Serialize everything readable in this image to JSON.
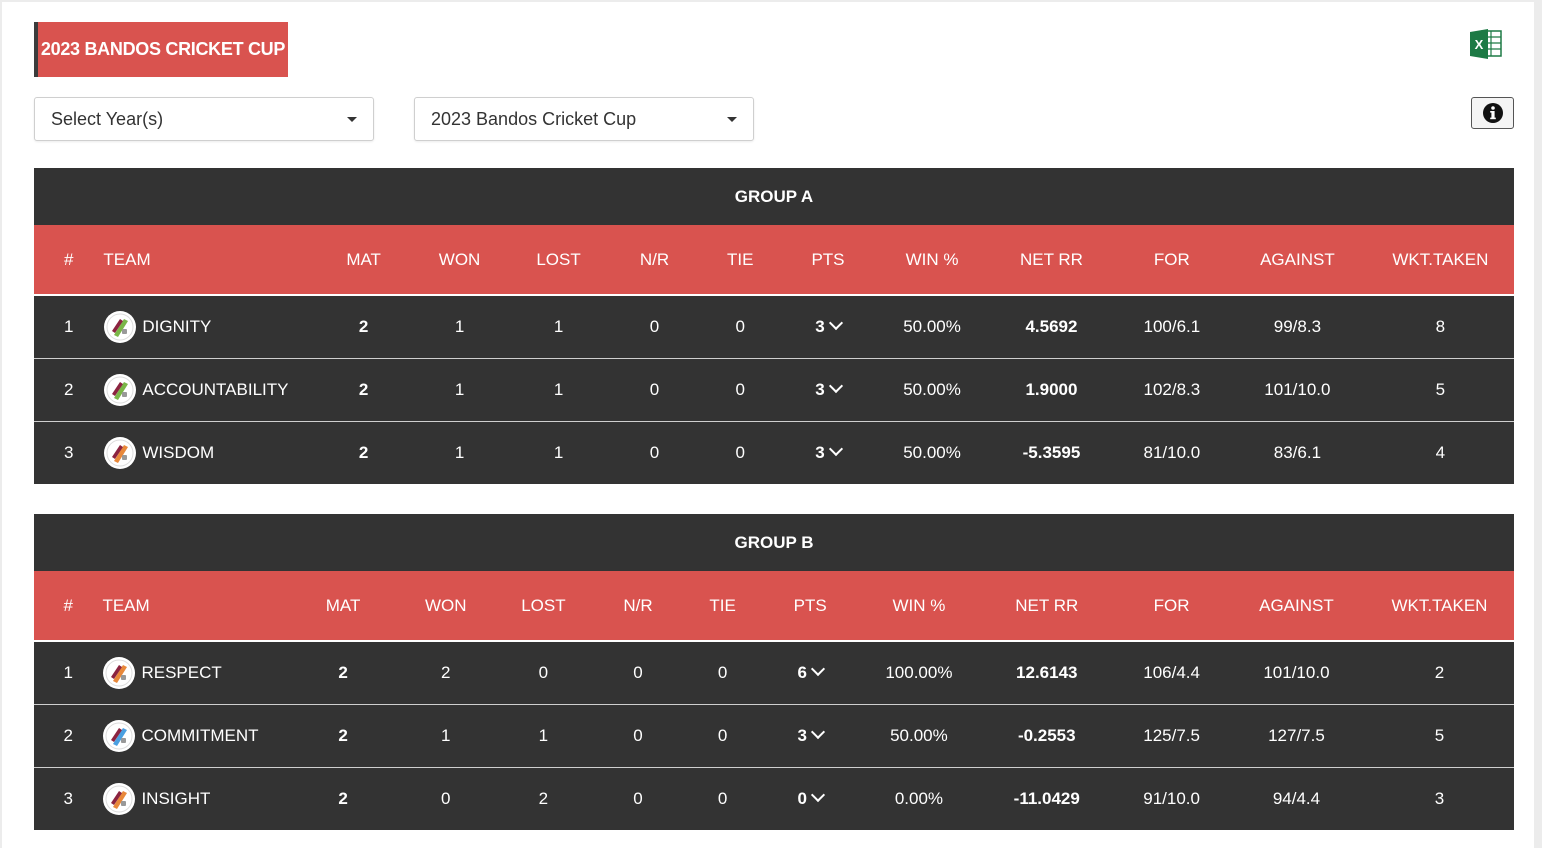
{
  "page": {
    "title": "2023 BANDOS CRICKET CUP",
    "export_icon": "excel-icon",
    "info_icon": "info-icon"
  },
  "filters": {
    "year": "Select Year(s)",
    "tournament": "2023 Bandos Cricket Cup"
  },
  "columns": [
    "#",
    "TEAM",
    "MAT",
    "WON",
    "LOST",
    "N/R",
    "TIE",
    "PTS",
    "WIN %",
    "NET RR",
    "FOR",
    "AGAINST",
    "WKT.TAKEN"
  ],
  "colors": {
    "accent": "#d9534f",
    "dark": "#333333",
    "logo_green": "#7ab648",
    "logo_orange": "#e8883a",
    "logo_blue": "#4a9fe0",
    "logo_maroon": "#8b2340"
  },
  "groups": [
    {
      "name": "GROUP A",
      "rows": [
        {
          "pos": "1",
          "team": "DIGNITY",
          "mat": "2",
          "won": "1",
          "lost": "1",
          "nr": "0",
          "tie": "0",
          "pts": "3",
          "win_pct": "50.00%",
          "nrr": "4.5692",
          "for": "100/6.1",
          "against": "99/8.3",
          "wkt": "8",
          "logo": "green"
        },
        {
          "pos": "2",
          "team": "ACCOUNTABILITY",
          "mat": "2",
          "won": "1",
          "lost": "1",
          "nr": "0",
          "tie": "0",
          "pts": "3",
          "win_pct": "50.00%",
          "nrr": "1.9000",
          "for": "102/8.3",
          "against": "101/10.0",
          "wkt": "5",
          "logo": "green"
        },
        {
          "pos": "3",
          "team": "WISDOM",
          "mat": "2",
          "won": "1",
          "lost": "1",
          "nr": "0",
          "tie": "0",
          "pts": "3",
          "win_pct": "50.00%",
          "nrr": "-5.3595",
          "for": "81/10.0",
          "against": "83/6.1",
          "wkt": "4",
          "logo": "orange"
        }
      ]
    },
    {
      "name": "GROUP B",
      "rows": [
        {
          "pos": "1",
          "team": "RESPECT",
          "mat": "2",
          "won": "2",
          "lost": "0",
          "nr": "0",
          "tie": "0",
          "pts": "6",
          "win_pct": "100.00%",
          "nrr": "12.6143",
          "for": "106/4.4",
          "against": "101/10.0",
          "wkt": "2",
          "logo": "orange"
        },
        {
          "pos": "2",
          "team": "COMMITMENT",
          "mat": "2",
          "won": "1",
          "lost": "1",
          "nr": "0",
          "tie": "0",
          "pts": "3",
          "win_pct": "50.00%",
          "nrr": "-0.2553",
          "for": "125/7.5",
          "against": "127/7.5",
          "wkt": "5",
          "logo": "blue"
        },
        {
          "pos": "3",
          "team": "INSIGHT",
          "mat": "2",
          "won": "0",
          "lost": "2",
          "nr": "0",
          "tie": "0",
          "pts": "0",
          "win_pct": "0.00%",
          "nrr": "-11.0429",
          "for": "91/10.0",
          "against": "94/4.4",
          "wkt": "3",
          "logo": "orange"
        }
      ]
    }
  ]
}
